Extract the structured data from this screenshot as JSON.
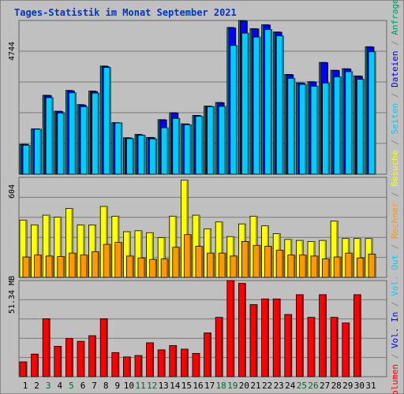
{
  "chart_data": [
    {
      "type": "bar",
      "title": "Tages-Statistik im Monat September 2021",
      "categories": [
        "1",
        "2",
        "3",
        "4",
        "5",
        "6",
        "7",
        "8",
        "9",
        "10",
        "11",
        "12",
        "13",
        "14",
        "15",
        "16",
        "17",
        "18",
        "19",
        "20",
        "21",
        "22",
        "23",
        "24",
        "25",
        "26",
        "27",
        "28",
        "29",
        "30",
        "31"
      ],
      "category_colors": [
        "#000000",
        "#000000",
        "#006633",
        "#000000",
        "#006633",
        "#000000",
        "#000000",
        "#000000",
        "#000000",
        "#000000",
        "#006633",
        "#006633",
        "#000000",
        "#000000",
        "#000000",
        "#000000",
        "#000000",
        "#006633",
        "#006633",
        "#000000",
        "#000000",
        "#000000",
        "#000000",
        "#000000",
        "#006633",
        "#006633",
        "#000000",
        "#000000",
        "#000000",
        "#000000",
        "#000000"
      ],
      "ytick": "4744",
      "ylim": [
        0,
        5100
      ],
      "grid": true,
      "series": [
        {
          "name": "Anfragen",
          "color": "#009966",
          "values": [
            990,
            1500,
            2620,
            2090,
            2780,
            2310,
            2760,
            3590,
            1710,
            1210,
            1320,
            1220,
            1810,
            2040,
            1670,
            1950,
            2260,
            2380,
            4870,
            5100,
            4830,
            4960,
            4720,
            3310,
            3030,
            3070,
            3710,
            3450,
            3500,
            3260,
            4230
          ]
        },
        {
          "name": "Dateien",
          "color": "#0000ff",
          "values": [
            990,
            1500,
            2610,
            2080,
            2760,
            2290,
            2740,
            3570,
            1700,
            1200,
            1300,
            1210,
            1800,
            2030,
            1660,
            1940,
            2250,
            2370,
            4850,
            5080,
            4820,
            4950,
            4710,
            3300,
            3020,
            3060,
            3700,
            3440,
            3490,
            3250,
            4220
          ]
        },
        {
          "name": "Seiten",
          "color": "#00ccff",
          "values": [
            960,
            1490,
            2540,
            2030,
            2700,
            2240,
            2690,
            3540,
            1700,
            1180,
            1290,
            1170,
            1540,
            1850,
            1640,
            1920,
            2240,
            2250,
            4270,
            4680,
            4550,
            4800,
            4590,
            3180,
            2980,
            2920,
            3020,
            3230,
            3400,
            3150,
            4060
          ]
        }
      ]
    },
    {
      "type": "bar",
      "ytick": "604",
      "ylim": [
        0,
        1030
      ],
      "grid": true,
      "series": [
        {
          "name": "Besuche",
          "color": "#ffff00",
          "values": [
            590,
            540,
            640,
            620,
            710,
            540,
            540,
            730,
            630,
            470,
            480,
            460,
            410,
            630,
            1000,
            640,
            500,
            570,
            420,
            550,
            630,
            530,
            450,
            390,
            380,
            370,
            380,
            580,
            400,
            400,
            400
          ]
        },
        {
          "name": "Rechner",
          "color": "#ff9900",
          "values": [
            210,
            230,
            220,
            215,
            250,
            230,
            265,
            340,
            360,
            220,
            200,
            185,
            190,
            310,
            440,
            320,
            250,
            250,
            220,
            370,
            330,
            320,
            280,
            230,
            230,
            220,
            190,
            210,
            250,
            200,
            240
          ]
        }
      ]
    },
    {
      "type": "bar",
      "ytick": "51.34 MB",
      "ylim": [
        0,
        68
      ],
      "grid": true,
      "series": [
        {
          "name": "Volumen",
          "color": "#ff0000",
          "values": [
            10.5,
            16,
            41,
            21.5,
            27,
            25,
            29,
            41,
            17,
            14,
            15,
            24,
            19,
            22,
            19.5,
            16.5,
            31,
            42,
            68,
            66,
            51,
            55,
            55,
            44,
            58,
            42,
            58,
            42,
            38,
            58,
            0
          ]
        },
        {
          "name": "Vol. In",
          "color": "#0000ff",
          "values": []
        },
        {
          "name": "Vol. Out",
          "color": "#00ccff",
          "values": []
        }
      ]
    }
  ],
  "right_legend": [
    {
      "text": "Volumen",
      "color": "#ff0000"
    },
    {
      "text": " / ",
      "color": "#888888"
    },
    {
      "text": "Vol. In",
      "color": "#0000ff"
    },
    {
      "text": " / ",
      "color": "#888888"
    },
    {
      "text": "Vol. Out",
      "color": "#00ccff"
    },
    {
      "text": " / ",
      "color": "#888888"
    },
    {
      "text": "Rechner",
      "color": "#ff9900"
    },
    {
      "text": " / ",
      "color": "#888888"
    },
    {
      "text": "Besuche",
      "color": "#ffff00"
    },
    {
      "text": " / ",
      "color": "#888888"
    },
    {
      "text": "Seiten",
      "color": "#00ccff"
    },
    {
      "text": " / ",
      "color": "#888888"
    },
    {
      "text": "Dateien",
      "color": "#0000ff"
    },
    {
      "text": " / ",
      "color": "#888888"
    },
    {
      "text": "Anfragen",
      "color": "#009966"
    }
  ]
}
